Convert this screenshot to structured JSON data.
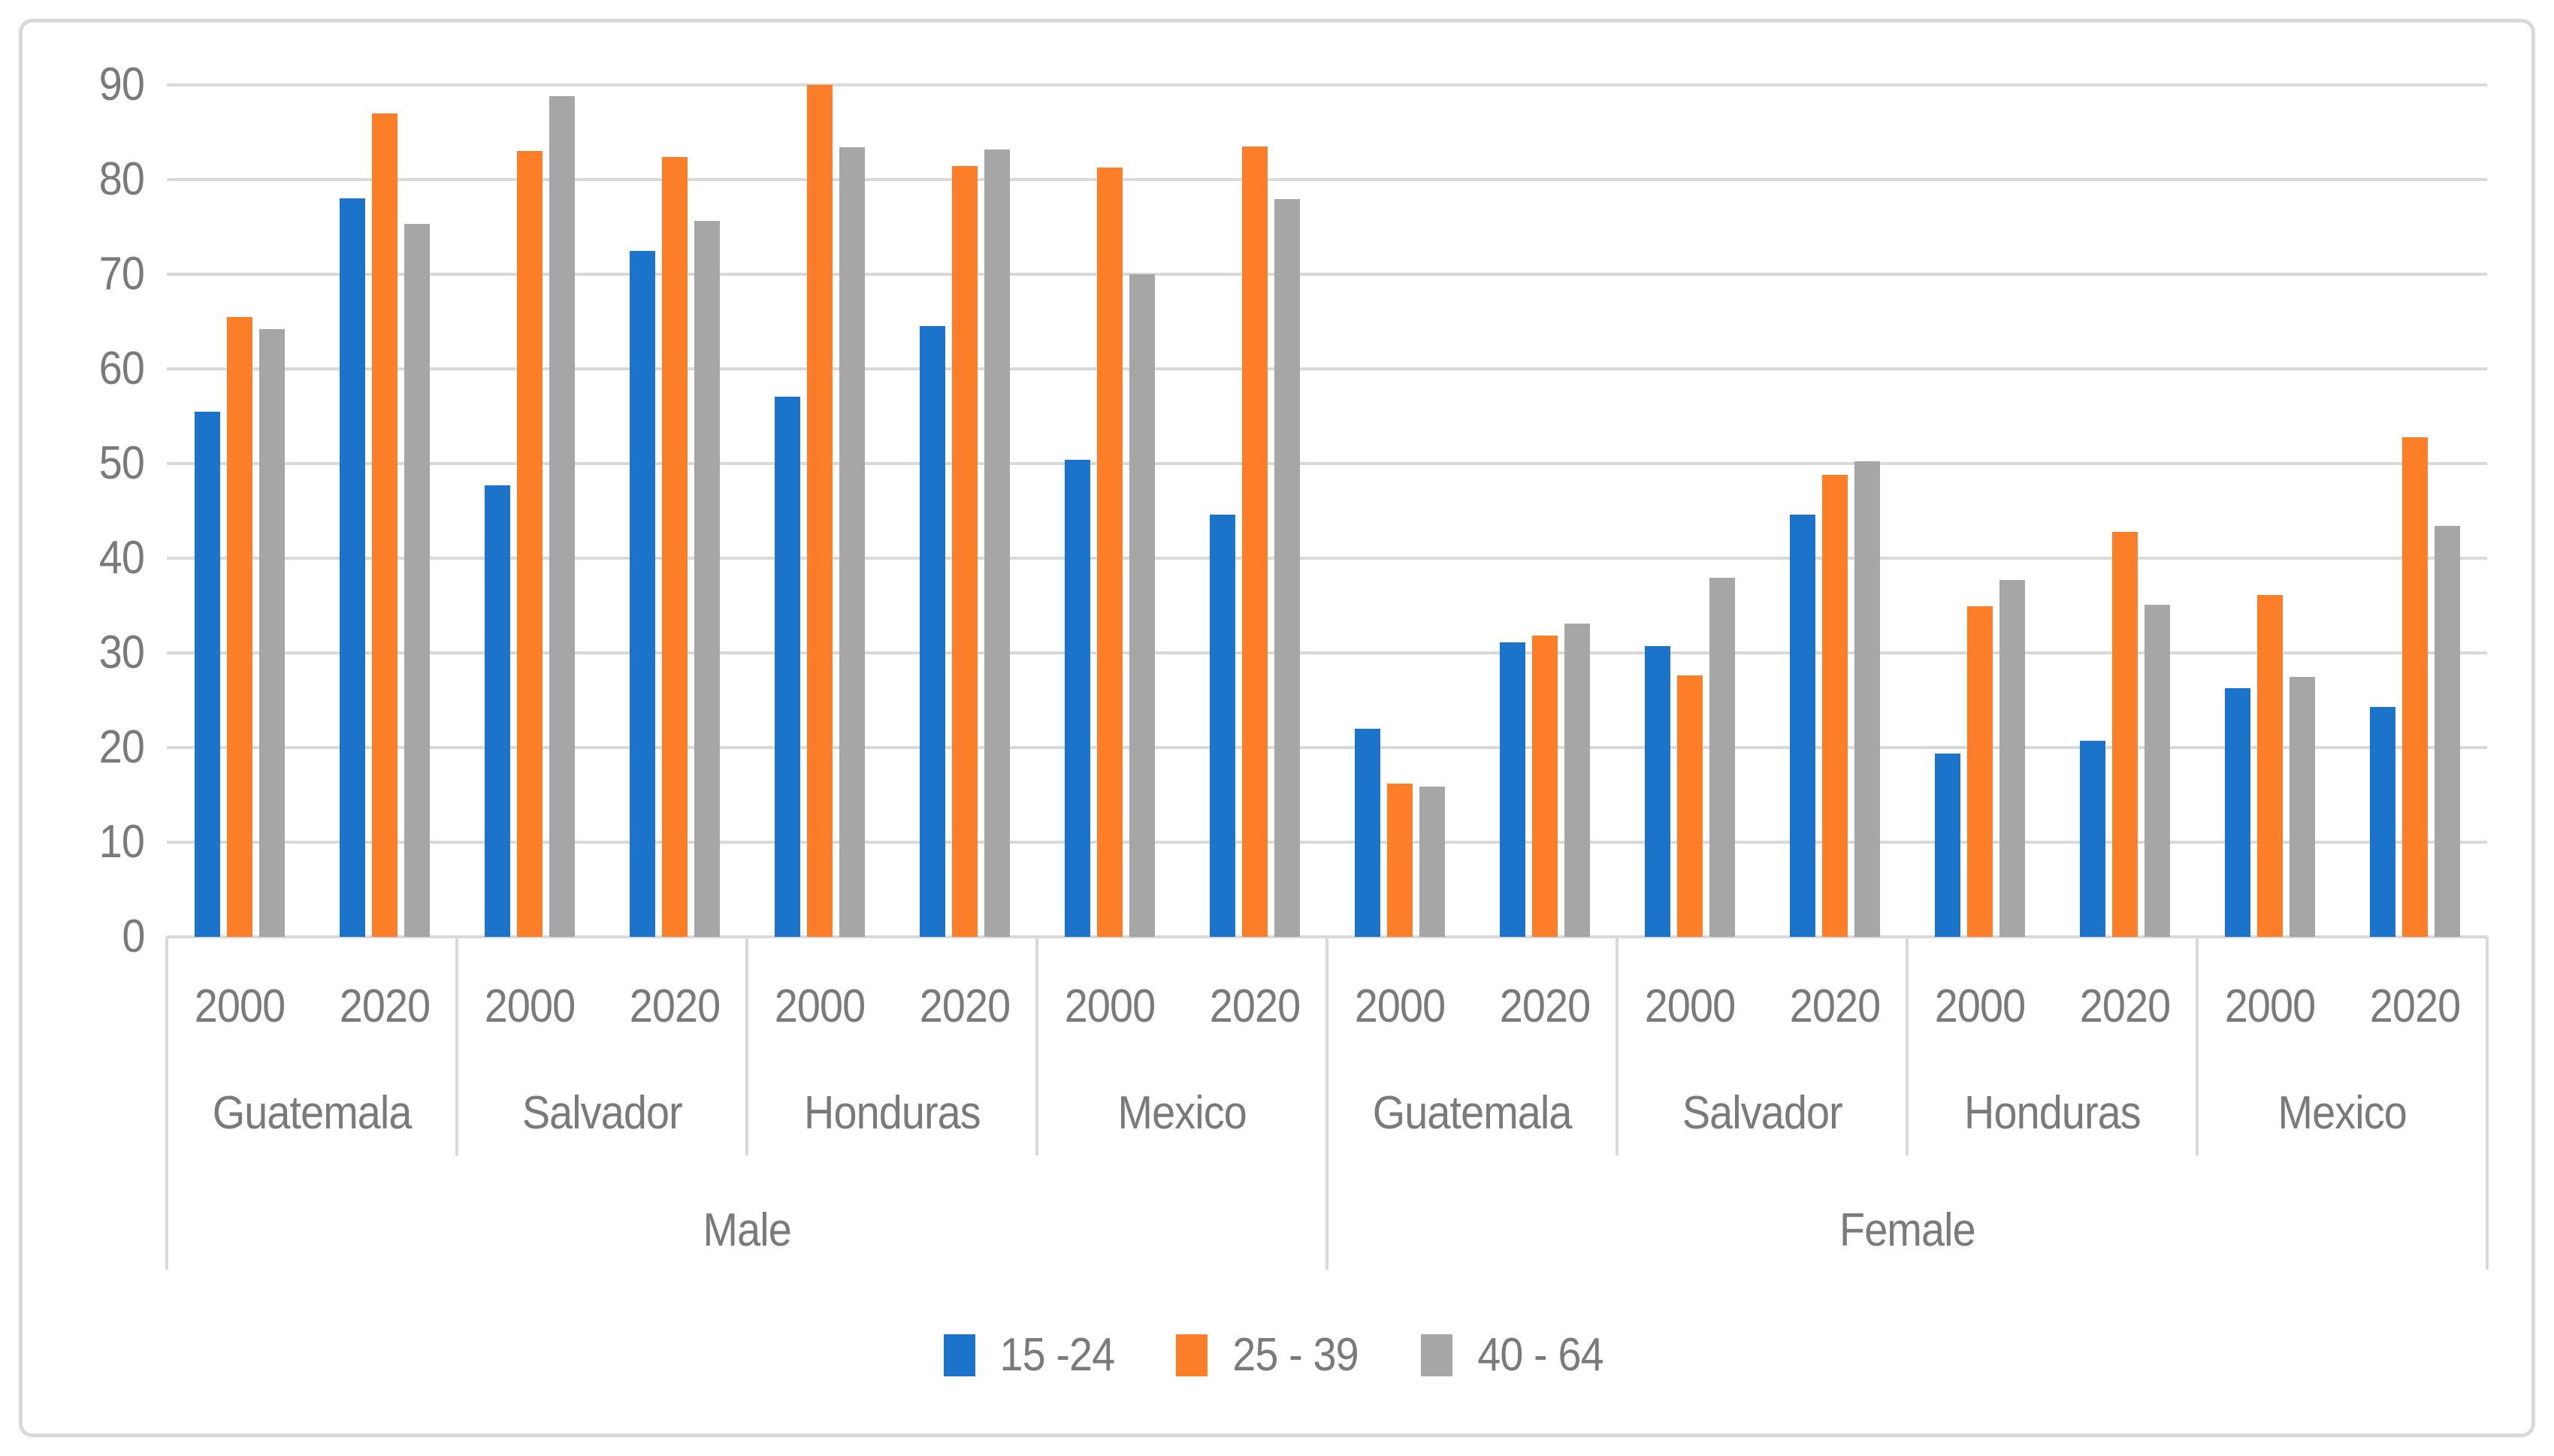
{
  "chart_data": {
    "type": "bar",
    "title": "",
    "xlabel": "",
    "ylabel": "",
    "ylim": [
      0,
      90
    ],
    "grid": true,
    "legend_position": "bottom",
    "yticks": [
      "0",
      "10",
      "20",
      "30",
      "40",
      "50",
      "60",
      "70",
      "80",
      "90"
    ],
    "series": [
      {
        "name": "15 -24",
        "color": "#1b74ca"
      },
      {
        "name": "25 - 39",
        "color": "#fd7e29"
      },
      {
        "name": "40 - 64",
        "color": "#a6a6a6"
      }
    ],
    "x_axis": {
      "year_row": [
        "2000",
        "2020",
        "2000",
        "2020",
        "2000",
        "2020",
        "2000",
        "2020",
        "2000",
        "2020",
        "2000",
        "2020",
        "2000",
        "2020",
        "2000",
        "2020"
      ],
      "country_row": [
        "Guatemala",
        "Salvador",
        "Honduras",
        "Mexico",
        "Guatemala",
        "Salvador",
        "Honduras",
        "Mexico"
      ],
      "gender_row": [
        "Male",
        "Female"
      ]
    },
    "groups": [
      {
        "gender": "Male",
        "country": "Guatemala",
        "year": "2000",
        "values": [
          55.5,
          65.5,
          64.2
        ]
      },
      {
        "gender": "Male",
        "country": "Guatemala",
        "year": "2020",
        "values": [
          78.0,
          87.0,
          75.3
        ]
      },
      {
        "gender": "Male",
        "country": "Salvador",
        "year": "2000",
        "values": [
          47.7,
          83.0,
          88.8
        ]
      },
      {
        "gender": "Male",
        "country": "Salvador",
        "year": "2020",
        "values": [
          72.5,
          82.4,
          75.6
        ]
      },
      {
        "gender": "Male",
        "country": "Honduras",
        "year": "2000",
        "values": [
          57.1,
          90.0,
          83.4
        ]
      },
      {
        "gender": "Male",
        "country": "Honduras",
        "year": "2020",
        "values": [
          64.5,
          81.4,
          83.2
        ]
      },
      {
        "gender": "Male",
        "country": "Mexico",
        "year": "2000",
        "values": [
          50.4,
          81.3,
          70.0
        ]
      },
      {
        "gender": "Male",
        "country": "Mexico",
        "year": "2020",
        "values": [
          44.6,
          83.5,
          77.9
        ]
      },
      {
        "gender": "Female",
        "country": "Guatemala",
        "year": "2000",
        "values": [
          22.0,
          16.2,
          15.9
        ]
      },
      {
        "gender": "Female",
        "country": "Guatemala",
        "year": "2020",
        "values": [
          31.1,
          31.8,
          33.1
        ]
      },
      {
        "gender": "Female",
        "country": "Salvador",
        "year": "2000",
        "values": [
          30.7,
          27.6,
          37.9
        ]
      },
      {
        "gender": "Female",
        "country": "Salvador",
        "year": "2020",
        "values": [
          44.6,
          48.8,
          50.2
        ]
      },
      {
        "gender": "Female",
        "country": "Honduras",
        "year": "2000",
        "values": [
          19.4,
          34.9,
          37.7
        ]
      },
      {
        "gender": "Female",
        "country": "Honduras",
        "year": "2020",
        "values": [
          20.7,
          42.8,
          35.1
        ]
      },
      {
        "gender": "Female",
        "country": "Mexico",
        "year": "2000",
        "values": [
          26.3,
          36.1,
          27.5
        ]
      },
      {
        "gender": "Female",
        "country": "Mexico",
        "year": "2020",
        "values": [
          24.3,
          52.8,
          43.4
        ]
      }
    ]
  },
  "colors": {
    "gridline": "#d9d9d9",
    "axis_text": "#7a7a7a",
    "border": "#d9d9d9"
  },
  "legend": {
    "items": [
      {
        "label": "15 -24",
        "color": "#1b74ca"
      },
      {
        "label": "25 - 39",
        "color": "#fd7e29"
      },
      {
        "label": "40 - 64",
        "color": "#a6a6a6"
      }
    ]
  }
}
